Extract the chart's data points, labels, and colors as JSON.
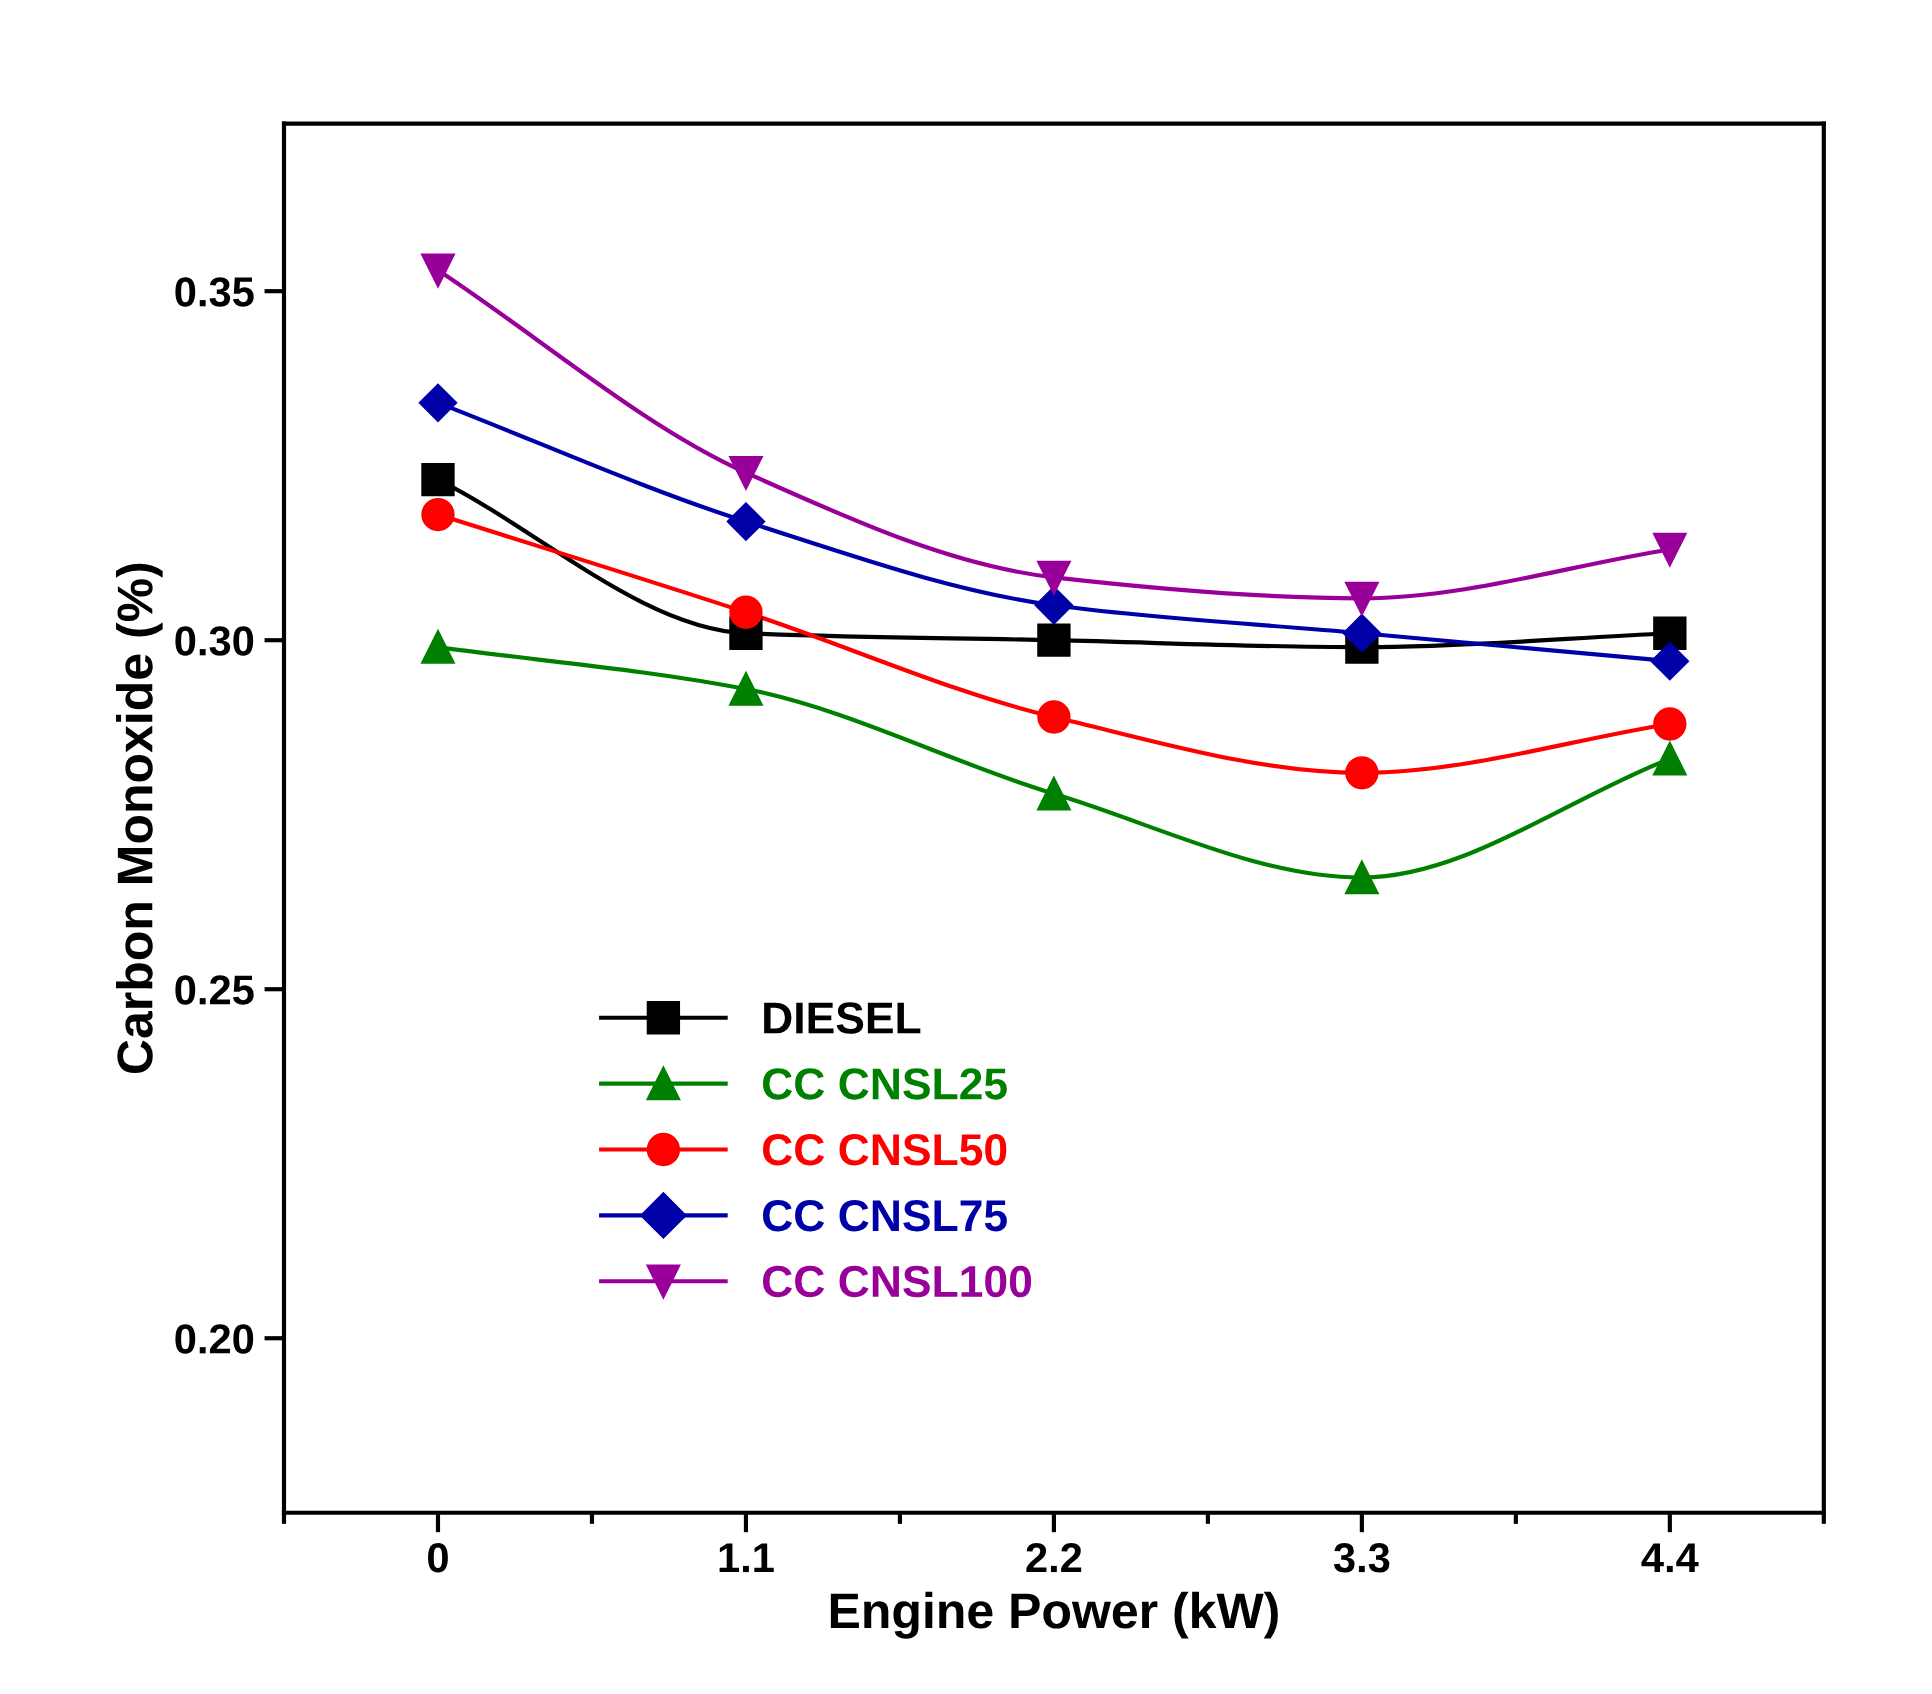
{
  "chart_data": {
    "type": "line",
    "xlabel": "Engine Power (kW)",
    "ylabel": "Carbon Monoxide (%)",
    "x": [
      0,
      1.1,
      2.2,
      3.3,
      4.4
    ],
    "xlim": [
      -0.55,
      4.95
    ],
    "xticks": [
      {
        "value": 0,
        "label": "0"
      },
      1.1,
      2.2,
      3.3,
      4.4
    ],
    "ylim": [
      0.175,
      0.374
    ],
    "yticks": [
      {
        "value": 0.2,
        "label": "0.20"
      },
      {
        "value": 0.25,
        "label": "0.25"
      },
      {
        "value": 0.3,
        "label": "0.30"
      },
      {
        "value": 0.35,
        "label": "0.35"
      }
    ],
    "grid": false,
    "legend": "bottom left",
    "line_style": "solid",
    "series": [
      {
        "name": "DIESEL",
        "color": "#000000",
        "marker": "square",
        "values": [
          0.323,
          0.301,
          0.3,
          0.299,
          0.301
        ]
      },
      {
        "name": "CC CNSL25",
        "color": "#008000",
        "marker": "triangle",
        "values": [
          0.299,
          0.293,
          0.278,
          0.266,
          0.283
        ]
      },
      {
        "name": "CC CNSL50",
        "color": "#ff0000",
        "marker": "circle",
        "values": [
          0.318,
          0.304,
          0.289,
          0.281,
          0.288
        ]
      },
      {
        "name": "CC CNSL75",
        "color": "#0000a8",
        "marker": "diamond",
        "values": [
          0.334,
          0.317,
          0.305,
          0.301,
          0.297
        ]
      },
      {
        "name": "CC CNSL100",
        "color": "#990099",
        "marker": "triangle_down",
        "values": [
          0.353,
          0.324,
          0.309,
          0.306,
          0.313
        ]
      }
    ]
  }
}
